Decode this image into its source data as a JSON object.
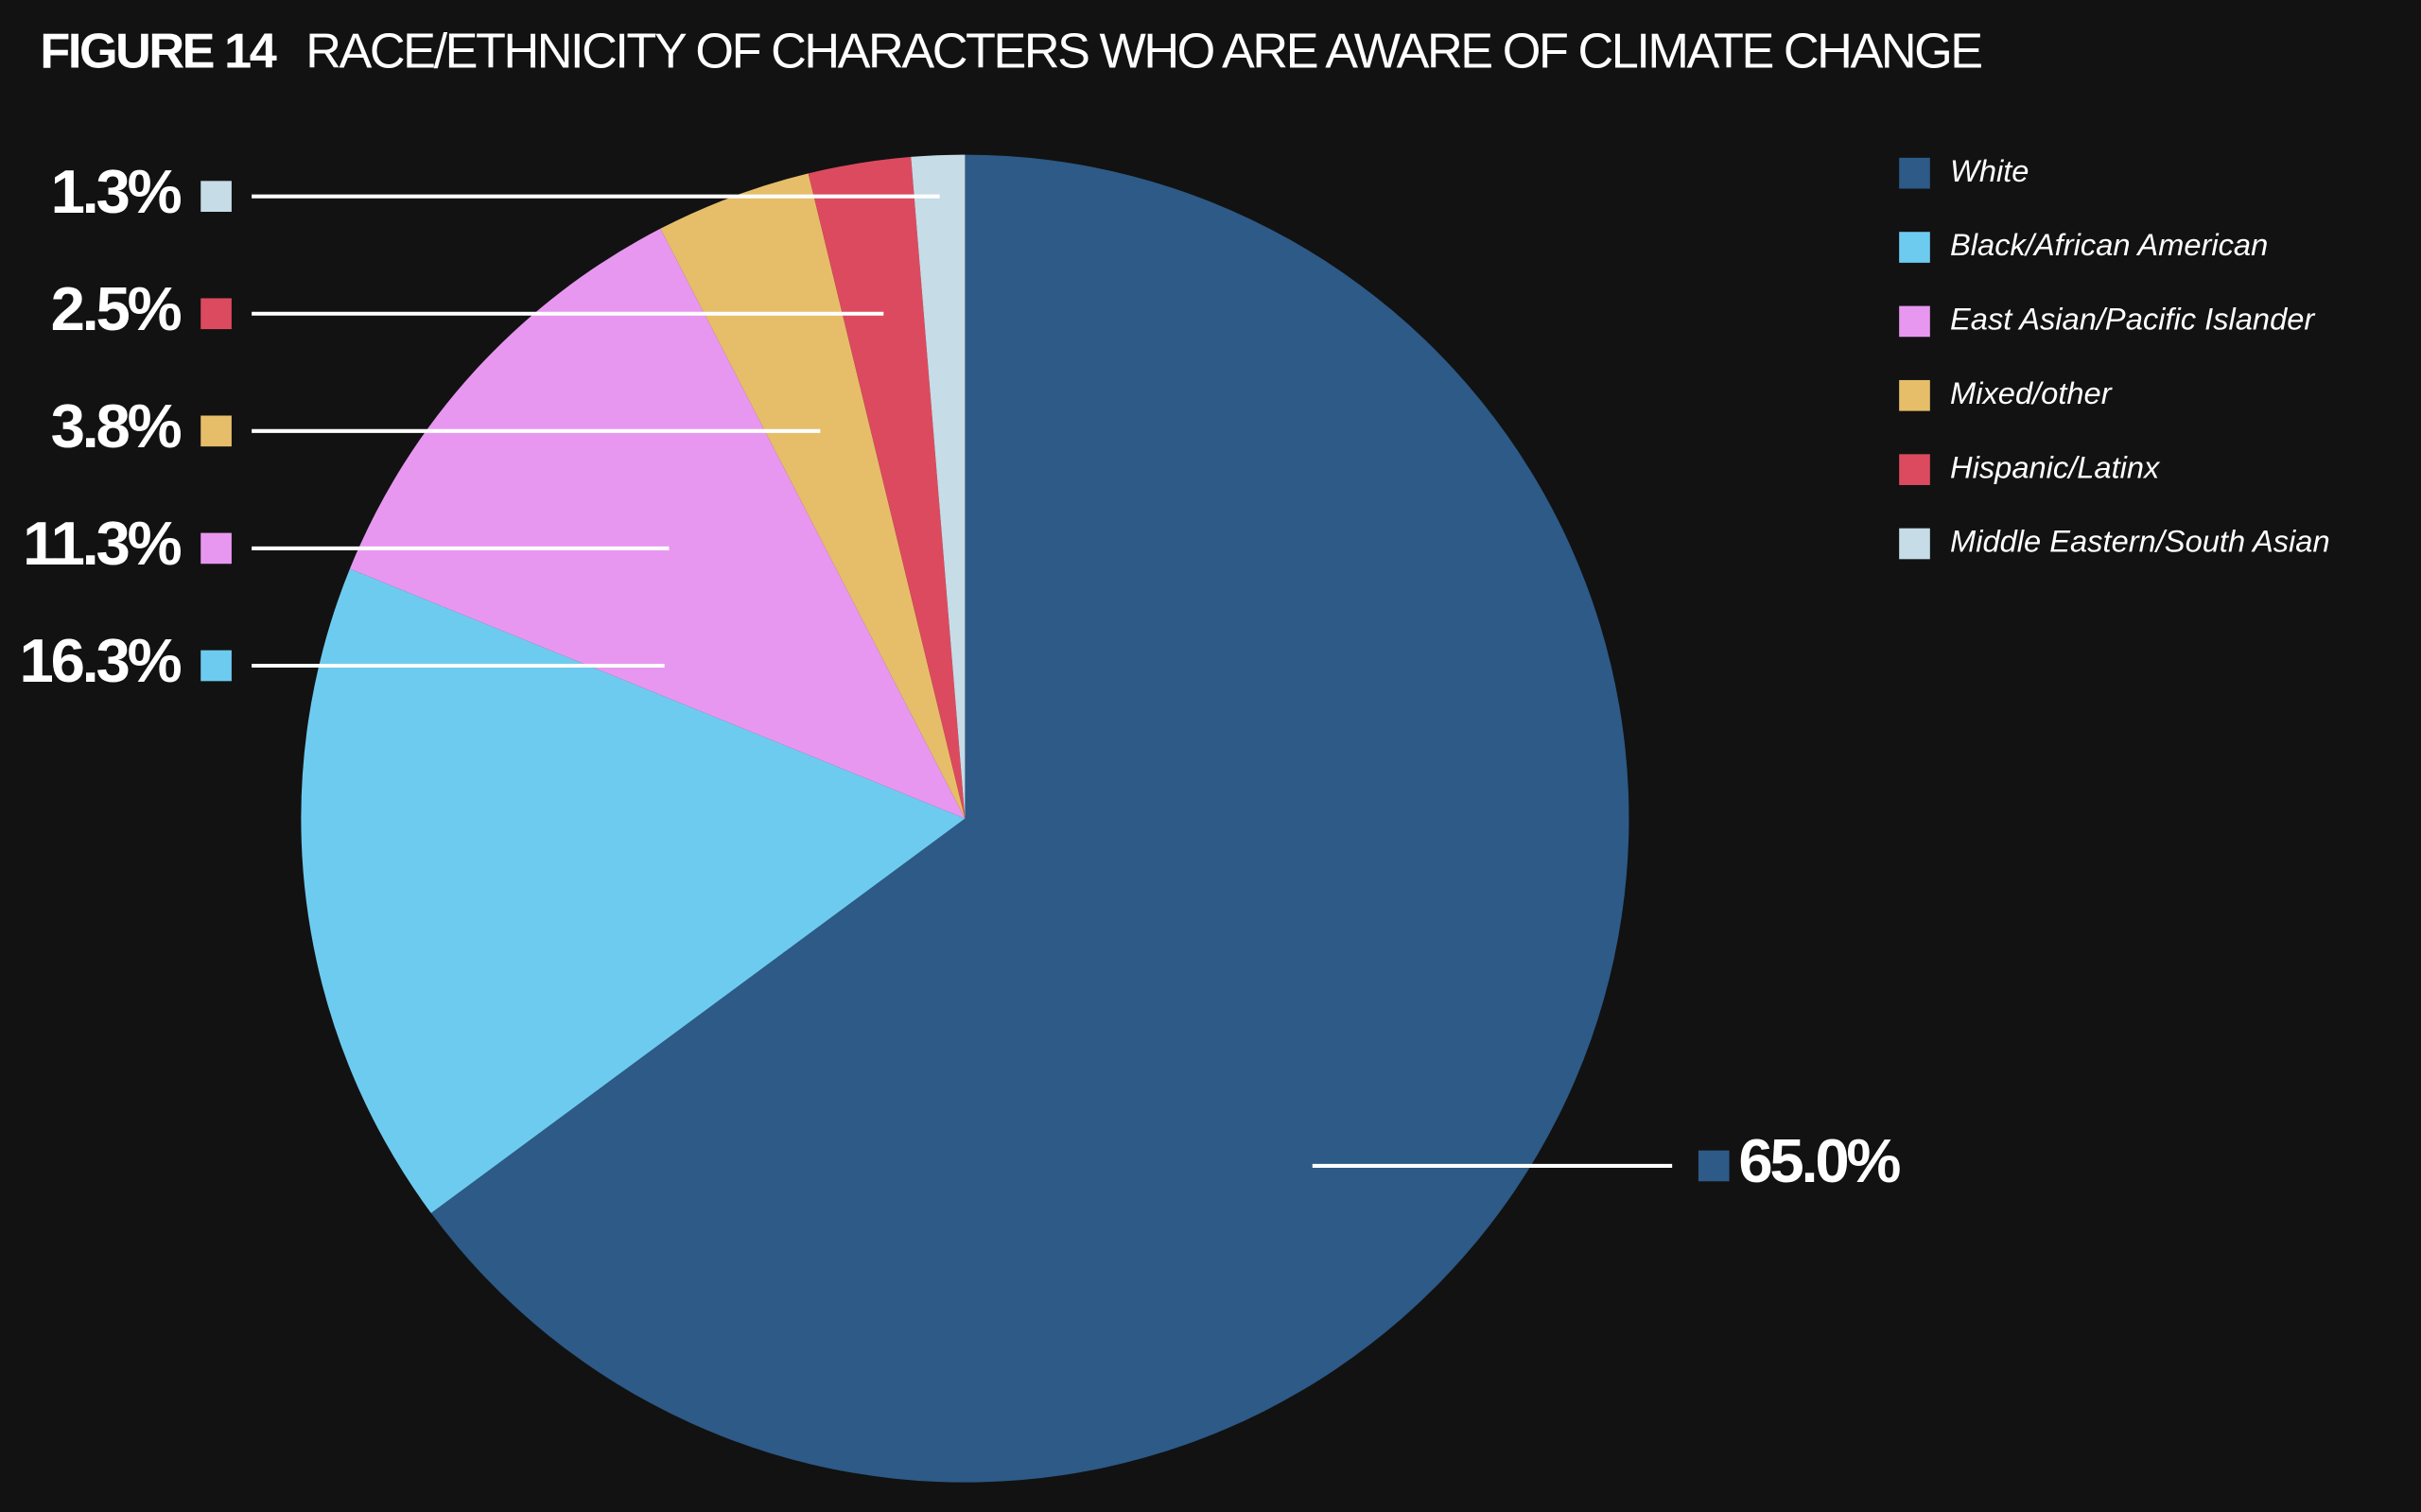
{
  "chart_data": {
    "type": "pie",
    "figure_label": "FIGURE 14",
    "title": "RACE/ETHNICITY OF CHARACTERS WHO ARE AWARE OF CLIMATE CHANGE",
    "categories": [
      "White",
      "Black/African American",
      "East Asian/Pacific Islander",
      "Mixed/other",
      "Hispanic/Latinx",
      "Middle Eastern/South Asian"
    ],
    "values": [
      65.0,
      16.3,
      11.3,
      3.8,
      2.5,
      1.3
    ],
    "value_labels": [
      "65.0%",
      "16.3%",
      "11.3%",
      "3.8%",
      "2.5%",
      "1.3%"
    ],
    "colors": [
      "#2d5a86",
      "#6ecbf0",
      "#e897f0",
      "#e6be6a",
      "#dc4a5f",
      "#c6dce6"
    ],
    "legend": "top-right"
  }
}
